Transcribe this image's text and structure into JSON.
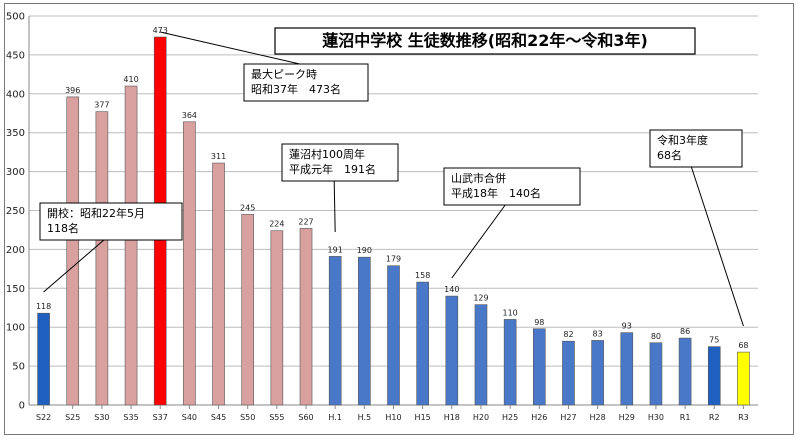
{
  "chart_data": {
    "type": "bar",
    "title": "蓮沼中学校 生徒数推移(昭和22年～令和3年)",
    "categories": [
      "S22",
      "S25",
      "S30",
      "S35",
      "S37",
      "S40",
      "S45",
      "S50",
      "S55",
      "S60",
      "H.1",
      "H.5",
      "H10",
      "H15",
      "H18",
      "H20",
      "H25",
      "H26",
      "H27",
      "H28",
      "H29",
      "H30",
      "R1",
      "R2",
      "R3"
    ],
    "values": [
      118,
      396,
      377,
      410,
      473,
      364,
      311,
      245,
      224,
      227,
      191,
      190,
      179,
      158,
      140,
      129,
      110,
      98,
      82,
      83,
      93,
      80,
      86,
      75,
      68
    ],
    "ylim": [
      0,
      500
    ],
    "yticks": [
      0,
      50,
      100,
      150,
      200,
      250,
      300,
      350,
      400,
      450,
      500
    ],
    "grid": true,
    "bar_colors": [
      "#1f5fbf",
      "#d9a0a0",
      "#d9a0a0",
      "#d9a0a0",
      "#ff0000",
      "#d9a0a0",
      "#d9a0a0",
      "#d9a0a0",
      "#d9a0a0",
      "#d9a0a0",
      "#4a78c8",
      "#4a78c8",
      "#4a78c8",
      "#4a78c8",
      "#4a78c8",
      "#4a78c8",
      "#4a78c8",
      "#4a78c8",
      "#4a78c8",
      "#4a78c8",
      "#4a78c8",
      "#4a78c8",
      "#4a78c8",
      "#1f5fbf",
      "#ffff00"
    ],
    "annotations": [
      {
        "category": "S22",
        "lines": [
          "開校：昭和22年5月",
          "118名"
        ]
      },
      {
        "category": "S37",
        "lines": [
          "最大ピーク時",
          "昭和37年　473名"
        ]
      },
      {
        "category": "H.1",
        "lines": [
          "蓮沼村100周年",
          "平成元年　191名"
        ]
      },
      {
        "category": "H18",
        "lines": [
          "山武市合併",
          "平成18年　140名"
        ]
      },
      {
        "category": "R3",
        "lines": [
          "令和3年度",
          "68名"
        ]
      }
    ]
  }
}
